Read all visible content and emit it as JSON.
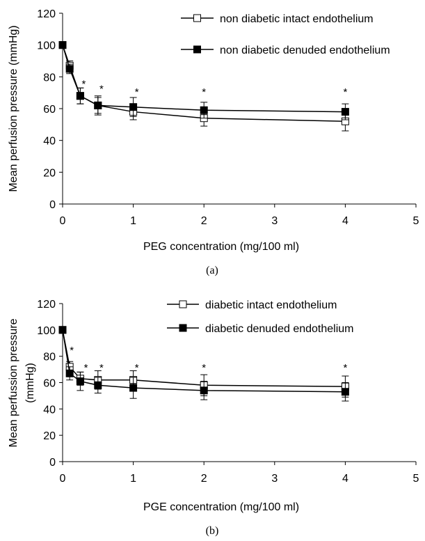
{
  "chart_data": [
    {
      "type": "line",
      "panel_caption": "(a)",
      "xlabel": "PEG concentration (mg/100 ml)",
      "ylabel": "Mean perfusion pressure (mmHg)",
      "xlim": [
        0,
        5
      ],
      "ylim": [
        0,
        120
      ],
      "xticks": [
        "0",
        "1",
        "2",
        "3",
        "4",
        "5"
      ],
      "yticks": [
        "0",
        "20",
        "40",
        "60",
        "80",
        "100",
        "120"
      ],
      "grid": false,
      "legend_position": "top-right",
      "series": [
        {
          "name": "non diabetic intact endothelium",
          "marker": "open-square",
          "x": [
            0,
            0.1,
            0.25,
            0.5,
            1,
            2,
            4
          ],
          "y": [
            100,
            87,
            68,
            62,
            58,
            54,
            52
          ],
          "error": [
            0,
            3,
            5,
            5,
            5,
            5,
            6
          ]
        },
        {
          "name": "non diabetic denuded endothelium",
          "marker": "filled-square",
          "x": [
            0,
            0.1,
            0.25,
            0.5,
            1,
            2,
            4
          ],
          "y": [
            100,
            85,
            68,
            62,
            61,
            59,
            58
          ],
          "error": [
            0,
            3,
            5,
            6,
            6,
            5,
            5
          ]
        }
      ],
      "annotations": [
        {
          "text": "*",
          "x": 0.3,
          "y": 76
        },
        {
          "text": "*",
          "x": 0.55,
          "y": 73
        },
        {
          "text": "*",
          "x": 1.05,
          "y": 71
        },
        {
          "text": "*",
          "x": 2,
          "y": 71
        },
        {
          "text": "*",
          "x": 4,
          "y": 71
        }
      ]
    },
    {
      "type": "line",
      "panel_caption": "(b)",
      "xlabel": "PGE concentration (mg/100 ml)",
      "ylabel": "Mean perfussion pressure (mmHg)",
      "ylabel_lines": [
        "Mean perfussion pressure",
        "(mmHg)"
      ],
      "xlim": [
        0,
        5
      ],
      "ylim": [
        0,
        120
      ],
      "xticks": [
        "0",
        "1",
        "2",
        "3",
        "4",
        "5"
      ],
      "yticks": [
        "0",
        "20",
        "40",
        "60",
        "80",
        "100",
        "120"
      ],
      "grid": false,
      "legend_position": "top-right",
      "series": [
        {
          "name": "diabetic intact endothelium",
          "marker": "open-square",
          "x": [
            0,
            0.1,
            0.25,
            0.5,
            1,
            2,
            4
          ],
          "y": [
            100,
            72,
            63,
            62,
            62,
            58,
            57
          ],
          "error": [
            0,
            4,
            5,
            7,
            7,
            8,
            8
          ]
        },
        {
          "name": "diabetic denuded endothelium",
          "marker": "filled-square",
          "x": [
            0,
            0.1,
            0.25,
            0.5,
            1,
            2,
            4
          ],
          "y": [
            100,
            67,
            61,
            58,
            56,
            54,
            53
          ],
          "error": [
            0,
            5,
            7,
            6,
            8,
            7,
            7
          ]
        }
      ],
      "annotations": [
        {
          "text": "*",
          "x": 0.13,
          "y": 85
        },
        {
          "text": "*",
          "x": 0.33,
          "y": 72
        },
        {
          "text": "*",
          "x": 0.55,
          "y": 72
        },
        {
          "text": "*",
          "x": 1.05,
          "y": 72
        },
        {
          "text": "*",
          "x": 2,
          "y": 72
        },
        {
          "text": "*",
          "x": 4,
          "y": 72
        }
      ]
    }
  ]
}
